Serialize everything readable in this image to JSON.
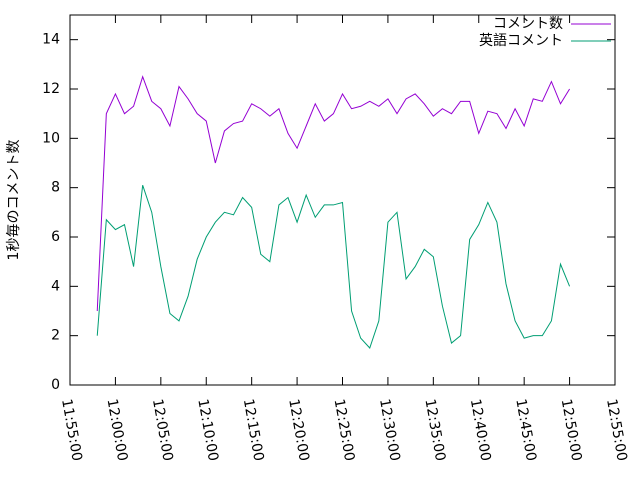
{
  "chart_data": {
    "type": "line",
    "ylabel": "1秒毎のコメント数",
    "x": [
      "11:58:00",
      "11:59:00",
      "12:00:00",
      "12:01:00",
      "12:02:00",
      "12:03:00",
      "12:04:00",
      "12:05:00",
      "12:06:00",
      "12:07:00",
      "12:08:00",
      "12:09:00",
      "12:10:00",
      "12:11:00",
      "12:12:00",
      "12:13:00",
      "12:14:00",
      "12:15:00",
      "12:16:00",
      "12:17:00",
      "12:18:00",
      "12:19:00",
      "12:20:00",
      "12:21:00",
      "12:22:00",
      "12:23:00",
      "12:24:00",
      "12:25:00",
      "12:26:00",
      "12:27:00",
      "12:28:00",
      "12:29:00",
      "12:30:00",
      "12:31:00",
      "12:32:00",
      "12:33:00",
      "12:34:00",
      "12:35:00",
      "12:36:00",
      "12:37:00",
      "12:38:00",
      "12:39:00",
      "12:40:00",
      "12:41:00",
      "12:42:00",
      "12:43:00",
      "12:44:00",
      "12:45:00",
      "12:46:00",
      "12:47:00",
      "12:48:00",
      "12:49:00",
      "12:50:00"
    ],
    "series": [
      {
        "name": "コメント数",
        "color": "#9400d3",
        "values": [
          3.0,
          11.0,
          11.8,
          11.0,
          11.3,
          12.5,
          11.5,
          11.2,
          10.5,
          12.1,
          11.6,
          11.0,
          10.7,
          9.0,
          10.3,
          10.6,
          10.7,
          11.4,
          11.2,
          10.9,
          11.2,
          10.2,
          9.6,
          10.5,
          11.4,
          10.7,
          11.0,
          11.8,
          11.2,
          11.3,
          11.5,
          11.3,
          11.6,
          11.0,
          11.6,
          11.8,
          11.4,
          10.9,
          11.2,
          11.0,
          11.5,
          11.5,
          10.2,
          11.1,
          11.0,
          10.4,
          11.2,
          10.5,
          11.6,
          11.5,
          12.3,
          11.4,
          12.0
        ]
      },
      {
        "name": "英語コメント",
        "color": "#009e73",
        "values": [
          2.0,
          6.7,
          6.3,
          6.5,
          4.8,
          8.1,
          7.0,
          4.8,
          2.9,
          2.6,
          3.6,
          5.1,
          6.0,
          6.6,
          7.0,
          6.9,
          7.6,
          7.2,
          5.3,
          5.0,
          7.3,
          7.6,
          6.6,
          7.7,
          6.8,
          7.3,
          7.3,
          7.4,
          3.0,
          1.9,
          1.5,
          2.6,
          6.6,
          7.0,
          4.3,
          4.8,
          5.5,
          5.2,
          3.2,
          1.7,
          2.0,
          5.9,
          6.5,
          7.4,
          6.6,
          4.1,
          2.6,
          1.9,
          2.0,
          2.0,
          2.6,
          4.9,
          4.0
        ]
      }
    ],
    "xlim": [
      "11:55:00",
      "12:55:00"
    ],
    "xticks": [
      "11:55:00",
      "12:00:00",
      "12:05:00",
      "12:10:00",
      "12:15:00",
      "12:20:00",
      "12:25:00",
      "12:30:00",
      "12:35:00",
      "12:40:00",
      "12:45:00",
      "12:50:00",
      "12:55:00"
    ],
    "ylim": [
      0,
      15
    ],
    "yticks": [
      0,
      2,
      4,
      6,
      8,
      10,
      12,
      14
    ],
    "legend": "top-right"
  }
}
